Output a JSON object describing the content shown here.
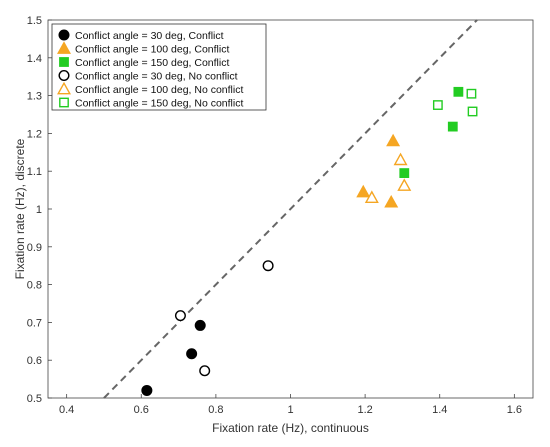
{
  "chart_data": {
    "type": "scatter",
    "xlabel": "Fixation rate (Hz), continuous",
    "ylabel": "Fixation rate (Hz), discrete",
    "xlim": [
      0.35,
      1.65
    ],
    "ylim": [
      0.5,
      1.5
    ],
    "xticks": [
      0.4,
      0.6,
      0.8,
      1,
      1.2,
      1.4,
      1.6
    ],
    "yticks": [
      0.5,
      0.6,
      0.7,
      0.8,
      0.9,
      1,
      1.1,
      1.2,
      1.3,
      1.4,
      1.5
    ],
    "grid": false,
    "legend_position": "top-left",
    "reference_line": {
      "style": "dashed",
      "slope": 1,
      "intercept": 0,
      "color": "#666666"
    },
    "series": [
      {
        "name": "Conflict angle = 30 deg, Conflict",
        "marker": "circle",
        "filled": true,
        "color": "#000000",
        "points": [
          [
            0.615,
            0.52
          ],
          [
            0.735,
            0.617
          ],
          [
            0.758,
            0.692
          ]
        ]
      },
      {
        "name": "Conflict angle = 100 deg, Conflict",
        "marker": "triangle",
        "filled": true,
        "color": "#F5A623",
        "points": [
          [
            1.195,
            1.045
          ],
          [
            1.27,
            1.018
          ],
          [
            1.275,
            1.18
          ]
        ]
      },
      {
        "name": "Conflict angle = 150 deg, Conflict",
        "marker": "square",
        "filled": true,
        "color": "#22CC22",
        "points": [
          [
            1.305,
            1.095
          ],
          [
            1.435,
            1.218
          ],
          [
            1.45,
            1.31
          ]
        ]
      },
      {
        "name": "Conflict angle = 30 deg, No conflict",
        "marker": "circle",
        "filled": false,
        "color": "#000000",
        "points": [
          [
            0.705,
            0.718
          ],
          [
            0.77,
            0.572
          ],
          [
            0.94,
            0.85
          ]
        ]
      },
      {
        "name": "Conflict angle = 100 deg, No conflict",
        "marker": "triangle",
        "filled": false,
        "color": "#F5A623",
        "points": [
          [
            1.218,
            1.03
          ],
          [
            1.295,
            1.13
          ],
          [
            1.305,
            1.062
          ]
        ]
      },
      {
        "name": "Conflict angle = 150 deg, No conflict",
        "marker": "square",
        "filled": false,
        "color": "#22CC22",
        "points": [
          [
            1.395,
            1.275
          ],
          [
            1.485,
            1.305
          ],
          [
            1.488,
            1.258
          ]
        ]
      }
    ]
  }
}
